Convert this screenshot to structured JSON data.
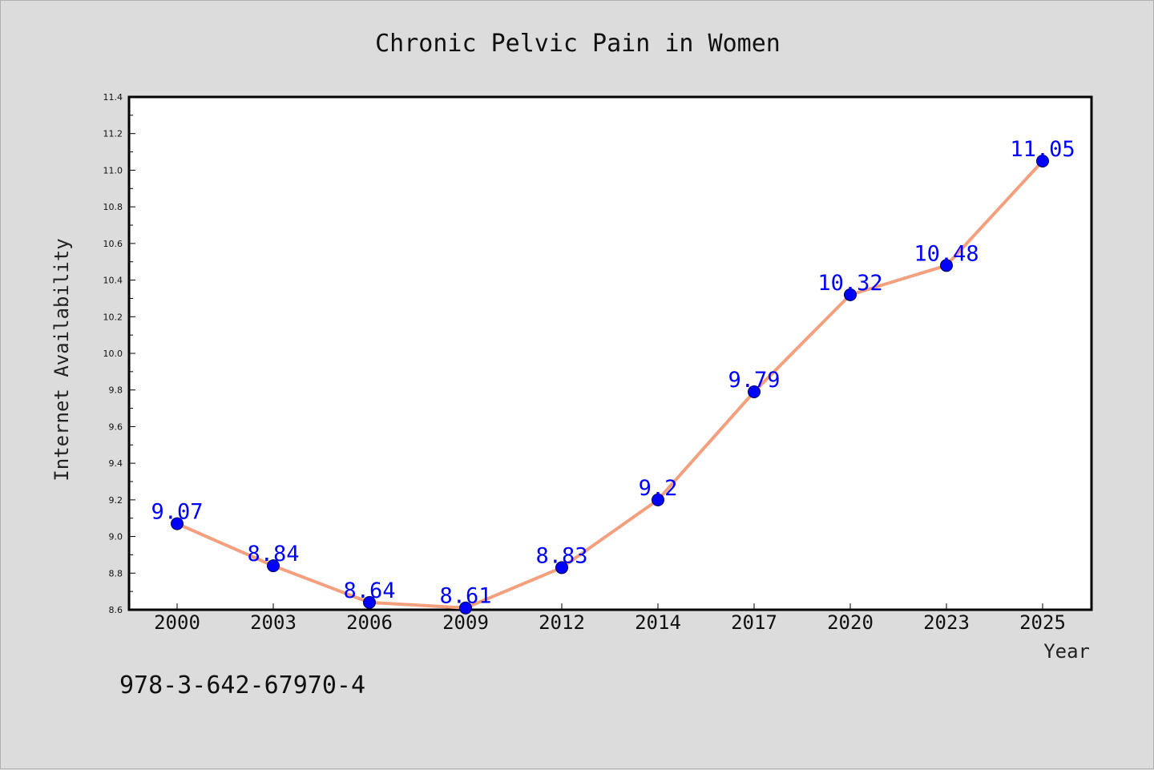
{
  "chart_data": {
    "type": "line",
    "title": "Chronic Pelvic Pain in Women",
    "xlabel": "Year",
    "ylabel": "Internet Availability",
    "categories": [
      "2000",
      "2003",
      "2006",
      "2009",
      "2012",
      "2014",
      "2017",
      "2020",
      "2023",
      "2025"
    ],
    "series": [
      {
        "values": [
          9.07,
          8.84,
          8.64,
          8.61,
          8.83,
          9.2,
          9.79,
          10.32,
          10.48,
          11.05
        ]
      }
    ],
    "data_labels": [
      "9.07",
      "8.84",
      "8.64",
      "8.61",
      "8.83",
      "9.2",
      "9.79",
      "10.32",
      "10.48",
      "11.05"
    ],
    "ylim": [
      8.6,
      11.4
    ],
    "yticks": [
      "8.6",
      "8.8",
      "9.0",
      "9.2",
      "9.4",
      "9.6",
      "9.8",
      "10.0",
      "10.2",
      "10.4",
      "10.6",
      "10.8",
      "11.0",
      "11.2",
      "11.4"
    ],
    "grid": false,
    "legend": "none",
    "line_color": "#f4a07e",
    "marker_color": "#0000ff",
    "label_color": "#0000ff",
    "background_color": "#dcdcdc",
    "plot_background_color": "#ffffff"
  },
  "footer": {
    "isbn": "978-3-642-67970-4"
  }
}
